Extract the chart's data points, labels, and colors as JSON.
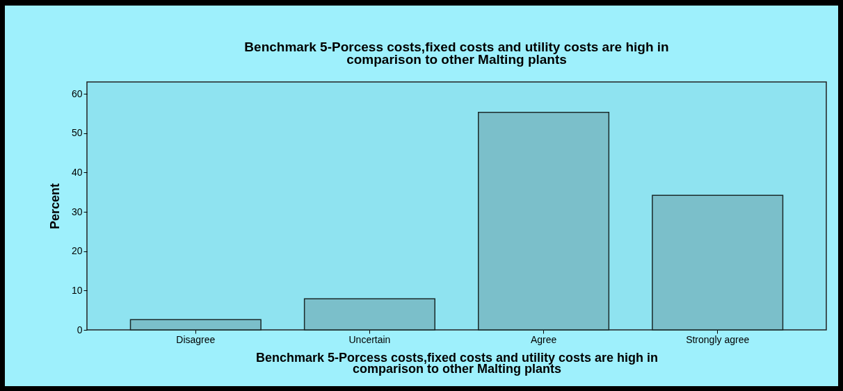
{
  "chart_data": {
    "type": "bar",
    "title": "Benchmark 5-Porcess costs,fixed costs and utility costs are high in\ncomparison to other Malting plants",
    "xlabel": "Benchmark 5-Porcess costs,fixed costs and utility costs are high in\ncomparison to other Malting plants",
    "ylabel": "Percent",
    "categories": [
      "Disagree",
      "Uncertain",
      "Agree",
      "Strongly agree"
    ],
    "values": [
      2.6,
      7.9,
      55.3,
      34.2
    ],
    "color": "#7bbfca",
    "ylim": [
      0,
      63
    ],
    "yticks": [
      0,
      10,
      20,
      30,
      40,
      50,
      60
    ],
    "grid": false
  }
}
